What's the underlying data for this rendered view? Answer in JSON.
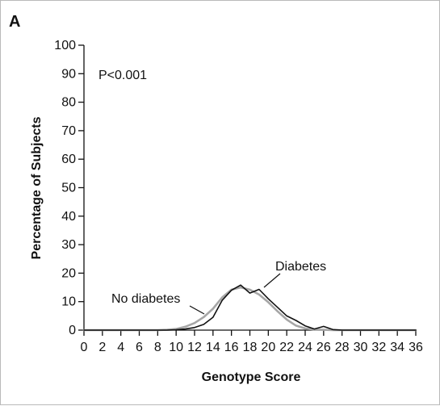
{
  "chart_data": {
    "type": "line",
    "panel_label": "A",
    "title": "",
    "xlabel": "Genotype Score",
    "ylabel": "Percentage of Subjects",
    "xlim": [
      0,
      36
    ],
    "ylim": [
      0,
      100
    ],
    "x_ticks": [
      0,
      2,
      4,
      6,
      8,
      10,
      12,
      14,
      16,
      18,
      20,
      22,
      24,
      26,
      28,
      30,
      32,
      34,
      36
    ],
    "y_ticks": [
      0,
      10,
      20,
      30,
      40,
      50,
      60,
      70,
      80,
      90,
      100
    ],
    "grid": false,
    "annotation": "P<0.001",
    "series": [
      {
        "name": "No diabetes",
        "color": "#a6a6a6",
        "x": [
          0,
          8,
          9,
          10,
          11,
          12,
          13,
          14,
          15,
          16,
          17,
          18,
          19,
          20,
          21,
          22,
          23,
          24,
          25,
          26,
          27,
          28,
          36
        ],
        "y": [
          0,
          0,
          0.1,
          0.4,
          1.2,
          2.5,
          4.6,
          7.5,
          11.5,
          14.2,
          15.0,
          14.2,
          12.5,
          9.8,
          6.6,
          3.7,
          1.6,
          0.6,
          0.2,
          0.1,
          0,
          0,
          0
        ]
      },
      {
        "name": "Diabetes",
        "color": "#111111",
        "x": [
          0,
          9,
          10,
          11,
          12,
          13,
          14,
          15,
          16,
          17,
          18,
          19,
          20,
          21,
          22,
          23,
          24,
          25,
          26,
          27,
          28,
          36
        ],
        "y": [
          0,
          0,
          0.1,
          0.4,
          0.9,
          2.0,
          4.5,
          10.5,
          14.0,
          15.8,
          13.0,
          14.3,
          11.0,
          8.0,
          5.0,
          3.4,
          1.5,
          0.4,
          1.3,
          0.2,
          0,
          0
        ]
      }
    ]
  }
}
